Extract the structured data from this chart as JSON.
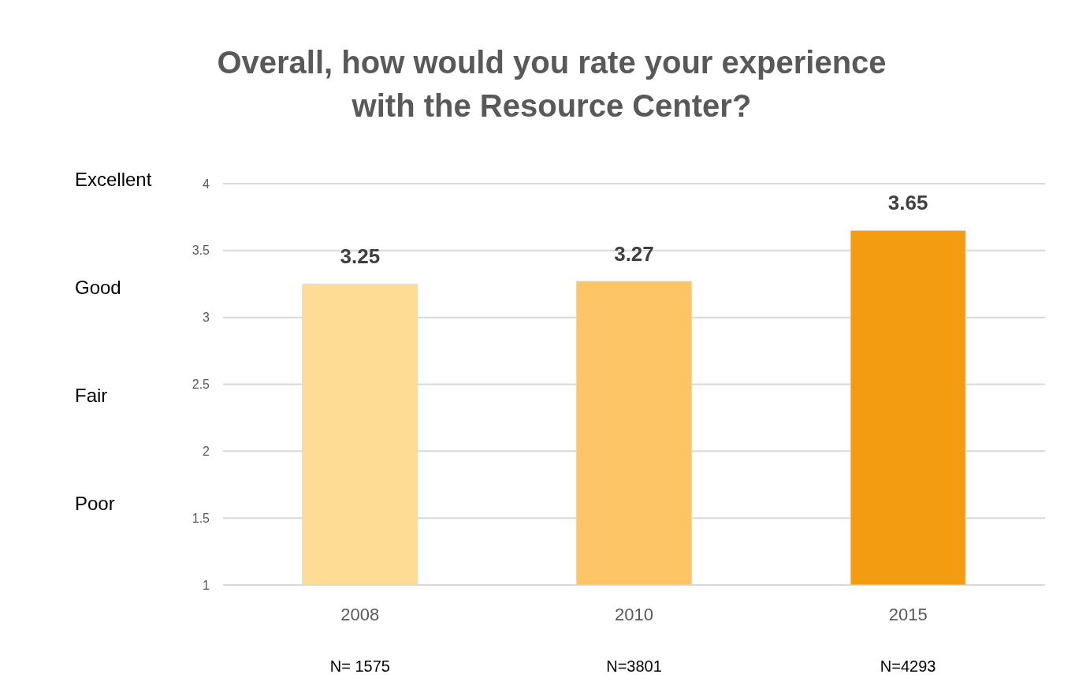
{
  "chart_data": {
    "type": "bar",
    "title": "Overall, how would you rate your experience with the Resource Center?",
    "categories": [
      "2008",
      "2010",
      "2015"
    ],
    "values": [
      3.25,
      3.27,
      3.65
    ],
    "colors": [
      "#fedc94",
      "#fdc566",
      "#f39c12"
    ],
    "ylim": [
      1,
      4
    ],
    "yticks": [
      1,
      1.5,
      2,
      2.5,
      3,
      3.5,
      4
    ],
    "grid": "y",
    "data_labels": true,
    "annotations": [
      "Excellent",
      "Good",
      "Fair",
      "Poor",
      "N= 1575",
      "N=3801",
      "N=4293"
    ]
  }
}
